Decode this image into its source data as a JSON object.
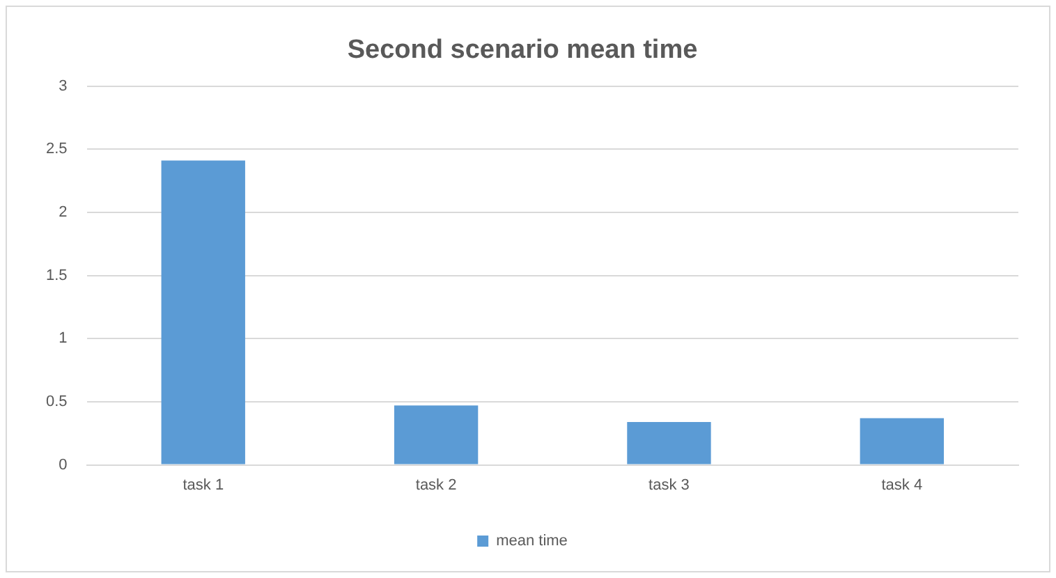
{
  "chart_data": {
    "type": "bar",
    "title": "Second scenario mean time",
    "categories": [
      "task 1",
      "task 2",
      "task 3",
      "task 4"
    ],
    "series": [
      {
        "name": "mean time",
        "color": "#5b9bd5",
        "values": [
          2.41,
          0.47,
          0.34,
          0.37
        ]
      }
    ],
    "ylim": [
      0,
      3
    ],
    "yticks": [
      0,
      0.5,
      1,
      1.5,
      2,
      2.5,
      3
    ],
    "grid": "y",
    "legend": "bottom"
  }
}
